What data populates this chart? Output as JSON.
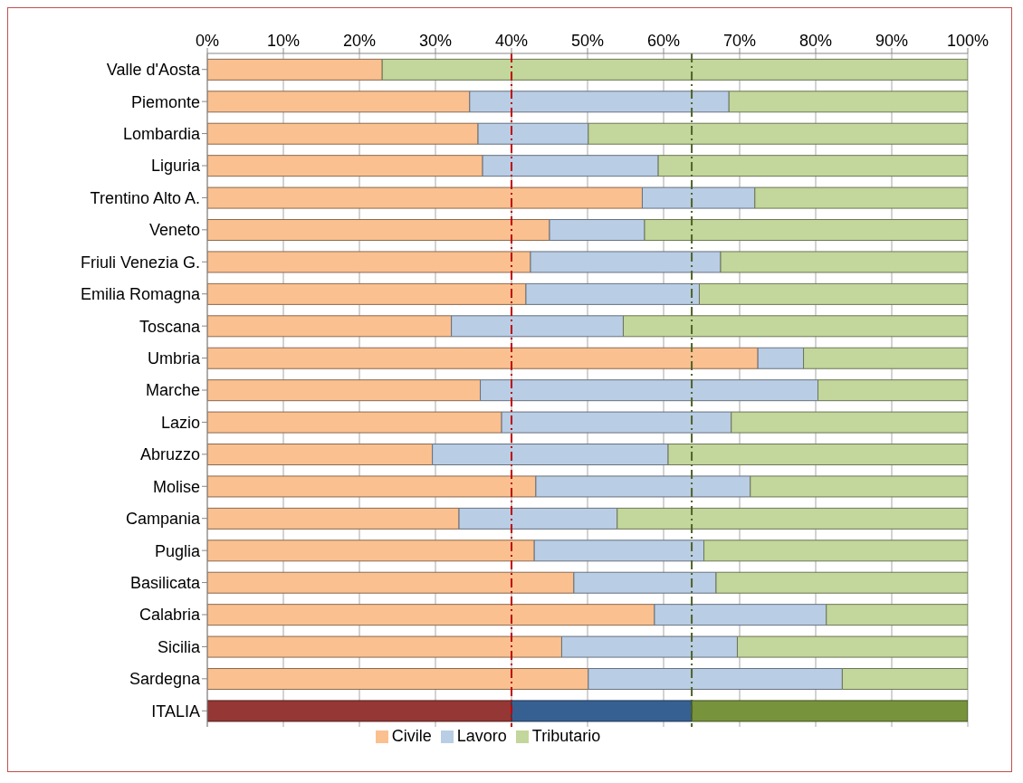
{
  "chart_data": {
    "type": "bar",
    "orientation": "horizontal",
    "stacked": true,
    "categories": [
      "Valle d'Aosta",
      "Piemonte",
      "Lombardia",
      "Liguria",
      "Trentino Alto A.",
      "Veneto",
      "Friuli Venezia G.",
      "Emilia Romagna",
      "Toscana",
      "Umbria",
      "Marche",
      "Lazio",
      "Abruzzo",
      "Molise",
      "Campania",
      "Puglia",
      "Basilicata",
      "Calabria",
      "Sicilia",
      "Sardegna",
      "ITALIA"
    ],
    "series": [
      {
        "name": "Civile",
        "color": "#fac090",
        "colors": [
          "#fac090",
          "#fac090",
          "#fac090",
          "#fac090",
          "#fac090",
          "#fac090",
          "#fac090",
          "#fac090",
          "#fac090",
          "#fac090",
          "#fac090",
          "#fac090",
          "#fac090",
          "#fac090",
          "#fac090",
          "#fac090",
          "#fac090",
          "#fac090",
          "#fac090",
          "#fac090",
          "#953735"
        ],
        "values": [
          23.0,
          34.5,
          35.6,
          36.2,
          57.2,
          45.0,
          42.5,
          41.9,
          32.1,
          72.4,
          35.9,
          38.7,
          29.6,
          43.2,
          33.1,
          43.0,
          48.2,
          58.8,
          46.6,
          50.1,
          40.0
        ]
      },
      {
        "name": "Lavoro",
        "color": "#b9cde5",
        "colors": [
          "#b9cde5",
          "#b9cde5",
          "#b9cde5",
          "#b9cde5",
          "#b9cde5",
          "#b9cde5",
          "#b9cde5",
          "#b9cde5",
          "#b9cde5",
          "#b9cde5",
          "#b9cde5",
          "#b9cde5",
          "#b9cde5",
          "#b9cde5",
          "#b9cde5",
          "#b9cde5",
          "#b9cde5",
          "#b9cde5",
          "#b9cde5",
          "#b9cde5",
          "#376092"
        ],
        "values": [
          0,
          34.1,
          14.5,
          23.1,
          14.8,
          12.5,
          25.0,
          22.8,
          22.6,
          6.0,
          44.4,
          30.2,
          31.0,
          28.2,
          20.8,
          22.3,
          18.7,
          22.6,
          23.1,
          33.4,
          23.7
        ]
      },
      {
        "name": "Tributario",
        "color": "#c3d69b",
        "colors": [
          "#c3d69b",
          "#c3d69b",
          "#c3d69b",
          "#c3d69b",
          "#c3d69b",
          "#c3d69b",
          "#c3d69b",
          "#c3d69b",
          "#c3d69b",
          "#c3d69b",
          "#c3d69b",
          "#c3d69b",
          "#c3d69b",
          "#c3d69b",
          "#c3d69b",
          "#c3d69b",
          "#c3d69b",
          "#c3d69b",
          "#c3d69b",
          "#c3d69b",
          "#77933c"
        ],
        "values": [
          77.0,
          31.4,
          49.9,
          40.7,
          28.0,
          42.5,
          32.5,
          35.3,
          45.3,
          21.6,
          19.7,
          31.1,
          39.4,
          28.6,
          46.1,
          34.7,
          33.1,
          18.6,
          30.3,
          16.5,
          36.3
        ]
      }
    ],
    "xlim": [
      0,
      100
    ],
    "xticks": [
      {
        "value": 0,
        "label": "0%"
      },
      {
        "value": 10,
        "label": "10%"
      },
      {
        "value": 20,
        "label": "20%"
      },
      {
        "value": 30,
        "label": "30%"
      },
      {
        "value": 40,
        "label": "40%"
      },
      {
        "value": 50,
        "label": "50%"
      },
      {
        "value": 60,
        "label": "60%"
      },
      {
        "value": 70,
        "label": "70%"
      },
      {
        "value": 80,
        "label": "80%"
      },
      {
        "value": 90,
        "label": "90%"
      },
      {
        "value": 100,
        "label": "100%"
      }
    ],
    "ref_lines": [
      {
        "axis": "x",
        "value": 40,
        "color": "#c00000",
        "line_style": "dashed"
      },
      {
        "axis": "x",
        "value": 63.7,
        "color": "#4f6228",
        "line_style": "dashed"
      }
    ],
    "grid": "x",
    "legend": "bottom"
  }
}
